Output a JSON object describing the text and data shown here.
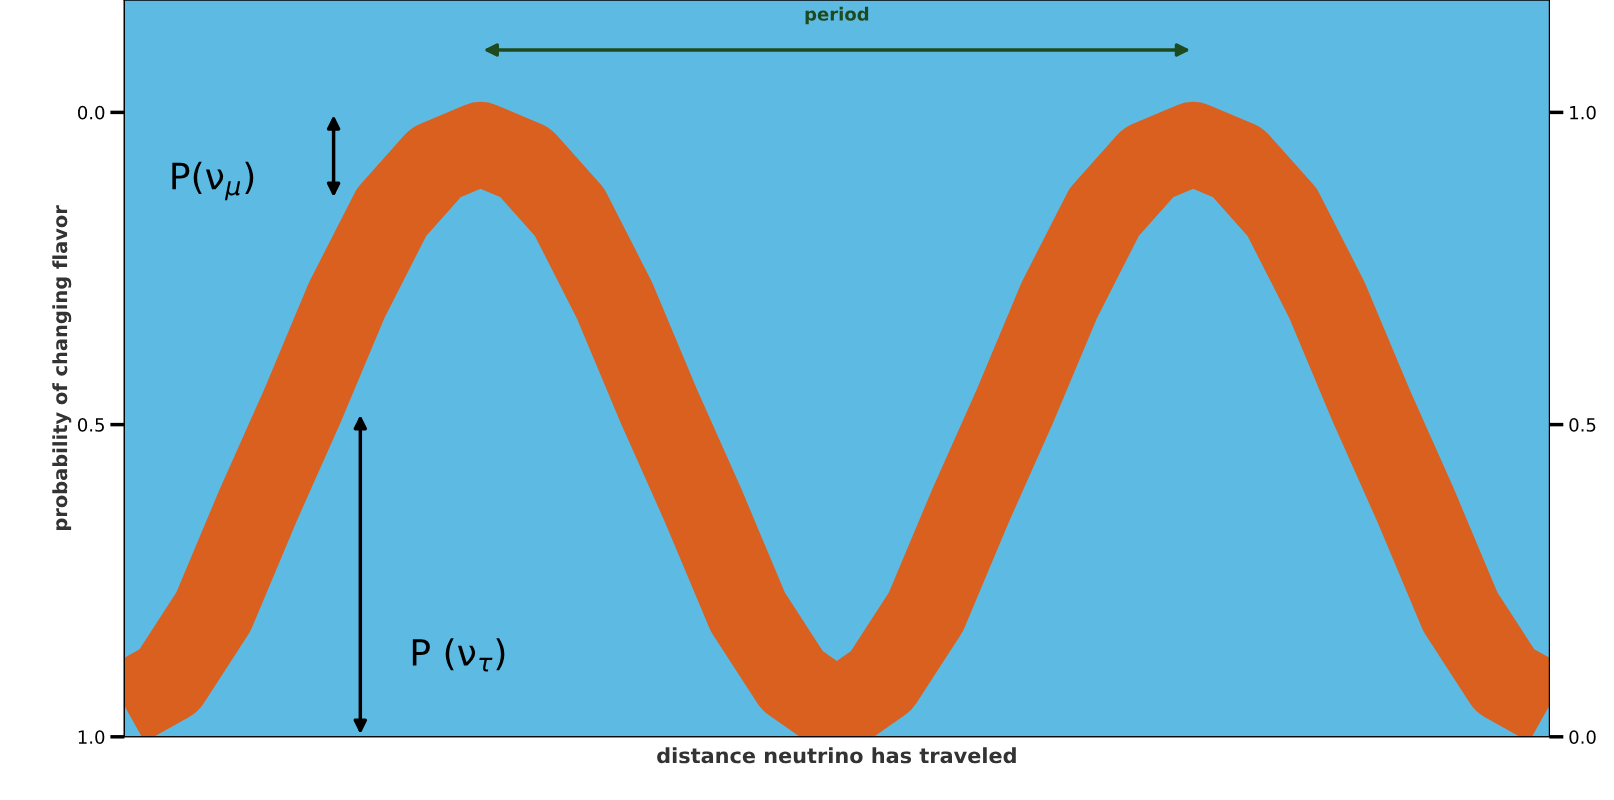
{
  "chart_data": {
    "type": "line",
    "xlabel": "distance neutrino has traveled",
    "ylabel": "probability of changing flavor",
    "categories": [
      null,
      null,
      null,
      null,
      null,
      null,
      null,
      null,
      null,
      null,
      null,
      null,
      null,
      null,
      null,
      null,
      null,
      null,
      null,
      null,
      null,
      null,
      null,
      null,
      null,
      null,
      null,
      null,
      null,
      null,
      null,
      null,
      null
    ],
    "series": [
      {
        "color": "#d9601e",
        "values": [
          0.95,
          0.91,
          0.8,
          0.63,
          0.47,
          0.3,
          0.16,
          0.08,
          0.05,
          0.08,
          0.16,
          0.3,
          0.47,
          0.63,
          0.8,
          0.91,
          0.96,
          0.91,
          0.8,
          0.63,
          0.47,
          0.3,
          0.16,
          0.08,
          0.05,
          0.08,
          0.16,
          0.3,
          0.47,
          0.63,
          0.8,
          0.91,
          0.95
        ]
      }
    ],
    "ylim": [
      1.0,
      -0.18
    ],
    "yticks": [
      {
        "value": 0,
        "label": "0.0"
      },
      {
        "value": 0.5,
        "label": "0.5"
      },
      {
        "value": 1,
        "label": "1.0"
      }
    ],
    "y2lim": [
      0,
      1.18
    ],
    "y2ticks": [
      {
        "value": 0,
        "label": "0.0"
      },
      {
        "value": 0.5,
        "label": "0.5"
      },
      {
        "value": 1,
        "label": "1.0"
      }
    ],
    "annotations": [
      "period",
      "P(ν$_{μ}$)",
      "P (ν$_{τ}$)"
    ]
  }
}
